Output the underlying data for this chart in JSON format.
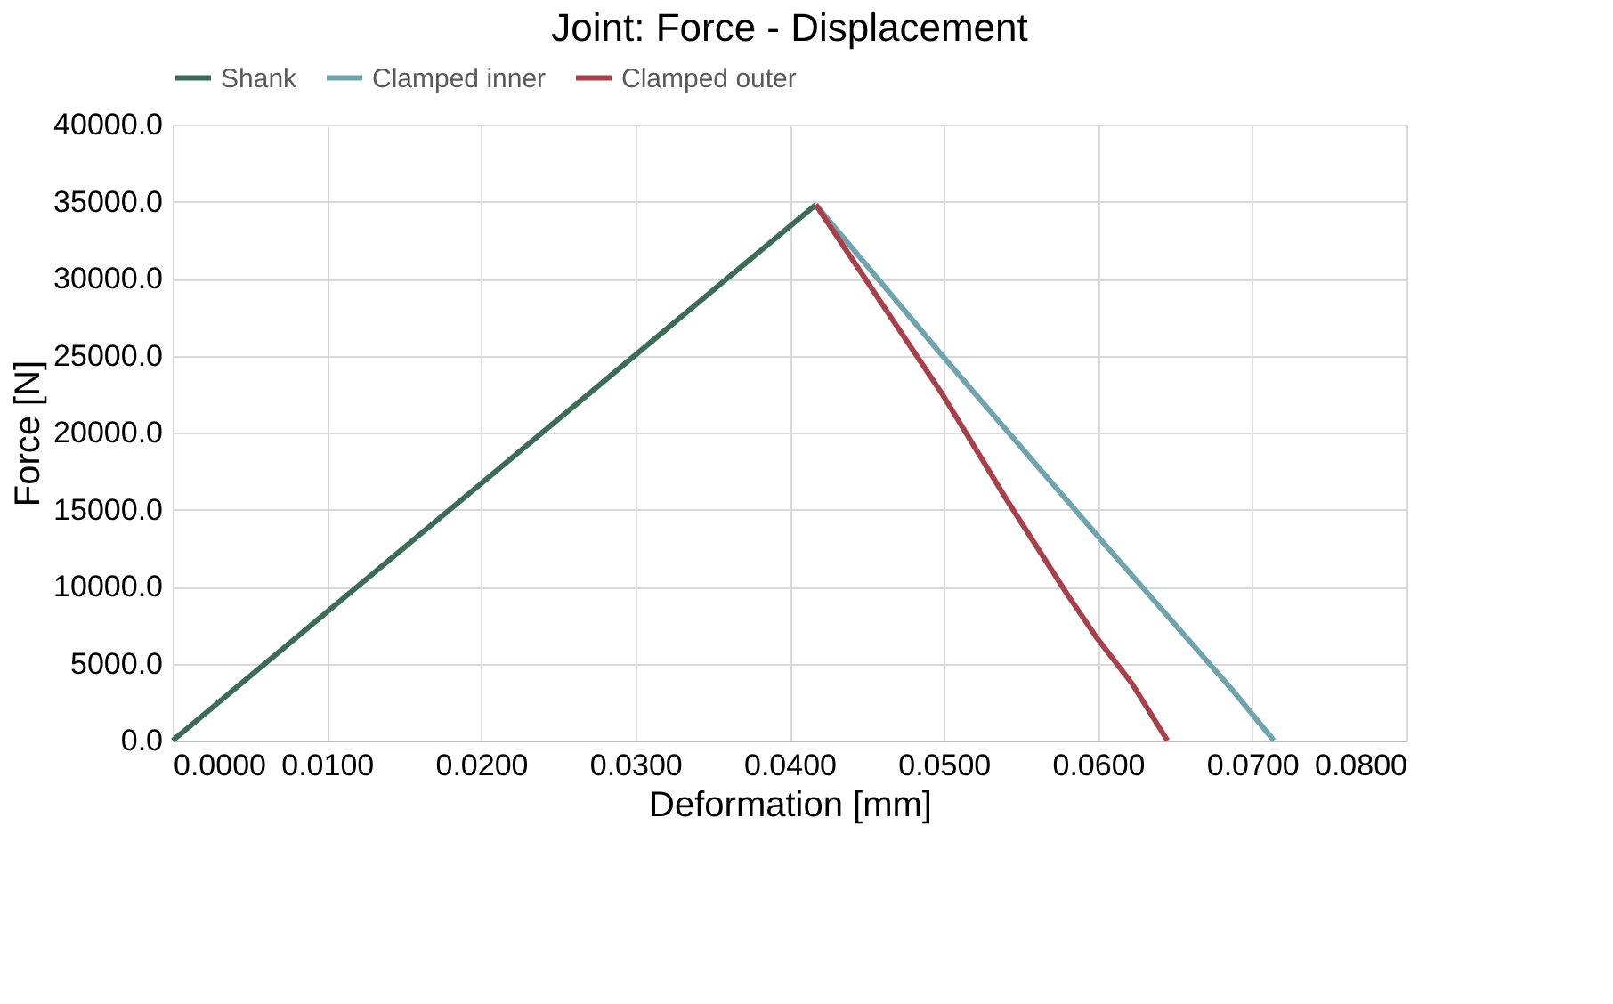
{
  "chart_data": {
    "type": "line",
    "title": "Joint: Force - Displacement",
    "xlabel": "Deformation [mm]",
    "ylabel": "Force [N]",
    "series": [
      {
        "name": "Shank",
        "color": "#3e6b57",
        "x": [
          0.0,
          0.0417
        ],
        "values": [
          0,
          34800
        ]
      },
      {
        "name": "Clamped inner",
        "color": "#6fa3ad",
        "x": [
          0.0417,
          0.0499,
          0.0603,
          0.0687,
          0.0714
        ],
        "values": [
          34800,
          25000,
          12900,
          3300,
          0
        ]
      },
      {
        "name": "Clamped outer",
        "color": "#a8404a",
        "x": [
          0.0417,
          0.0499,
          0.0541,
          0.058,
          0.0599,
          0.0622,
          0.0645
        ],
        "values": [
          34800,
          22500,
          15600,
          9500,
          6700,
          3700,
          0
        ]
      }
    ],
    "xlim": [
      0,
      0.08
    ],
    "xticks": [
      {
        "value": 0,
        "label": "0.0000"
      },
      {
        "value": 0.01,
        "label": "0.0100"
      },
      {
        "value": 0.02,
        "label": "0.0200"
      },
      {
        "value": 0.03,
        "label": "0.0300"
      },
      {
        "value": 0.04,
        "label": "0.0400"
      },
      {
        "value": 0.05,
        "label": "0.0500"
      },
      {
        "value": 0.06,
        "label": "0.0600"
      },
      {
        "value": 0.07,
        "label": "0.0700"
      },
      {
        "value": 0.08,
        "label": "0.0800"
      }
    ],
    "ylim": [
      0,
      40000
    ],
    "yticks": [
      {
        "value": 0,
        "label": "0.0"
      },
      {
        "value": 5000,
        "label": "5000.0"
      },
      {
        "value": 10000,
        "label": "10000.0"
      },
      {
        "value": 15000,
        "label": "15000.0"
      },
      {
        "value": 20000,
        "label": "20000.0"
      },
      {
        "value": 25000,
        "label": "25000.0"
      },
      {
        "value": 30000,
        "label": "30000.0"
      },
      {
        "value": 35000,
        "label": "35000.0"
      },
      {
        "value": 40000,
        "label": "40000.0"
      }
    ],
    "grid": true,
    "legend": "top",
    "marker": "none",
    "line_style": "solid"
  }
}
